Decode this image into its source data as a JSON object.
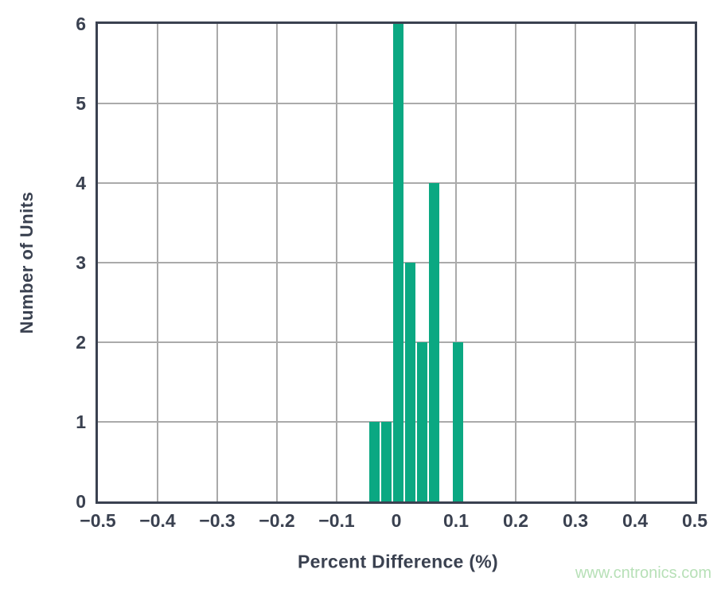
{
  "watermark": "www.cntronics.com",
  "colors": {
    "bar": "#0ba882",
    "axis_border": "#3a4150",
    "grid": "#aaaaaa",
    "text": "#3a4150",
    "watermark": "#b7e0b7",
    "background": "#ffffff"
  },
  "chart_data": {
    "type": "bar",
    "title": "",
    "xlabel": "Percent Difference (%)",
    "ylabel": "Number of Units",
    "xlim": [
      -0.5,
      0.5
    ],
    "ylim": [
      0,
      6
    ],
    "grid": true,
    "legend": "none",
    "bin_width": 0.02,
    "x_ticks": [
      {
        "value": -0.5,
        "label": "−0.5"
      },
      {
        "value": -0.4,
        "label": "−0.4"
      },
      {
        "value": -0.3,
        "label": "−0.3"
      },
      {
        "value": -0.2,
        "label": "−0.2"
      },
      {
        "value": -0.1,
        "label": "−0.1"
      },
      {
        "value": 0,
        "label": "0"
      },
      {
        "value": 0.1,
        "label": "0.1"
      },
      {
        "value": 0.2,
        "label": "0.2"
      },
      {
        "value": 0.3,
        "label": "0.3"
      },
      {
        "value": 0.4,
        "label": "0.4"
      },
      {
        "value": 0.5,
        "label": "0.5"
      }
    ],
    "y_ticks": [
      {
        "value": 0,
        "label": "0"
      },
      {
        "value": 1,
        "label": "1"
      },
      {
        "value": 2,
        "label": "2"
      },
      {
        "value": 3,
        "label": "3"
      },
      {
        "value": 4,
        "label": "4"
      },
      {
        "value": 5,
        "label": "5"
      },
      {
        "value": 6,
        "label": "6"
      }
    ],
    "bars": [
      {
        "x": -0.04,
        "count": 1
      },
      {
        "x": -0.02,
        "count": 1
      },
      {
        "x": 0.0,
        "count": 6
      },
      {
        "x": 0.02,
        "count": 3
      },
      {
        "x": 0.04,
        "count": 2
      },
      {
        "x": 0.06,
        "count": 4
      },
      {
        "x": 0.1,
        "count": 2
      }
    ]
  }
}
